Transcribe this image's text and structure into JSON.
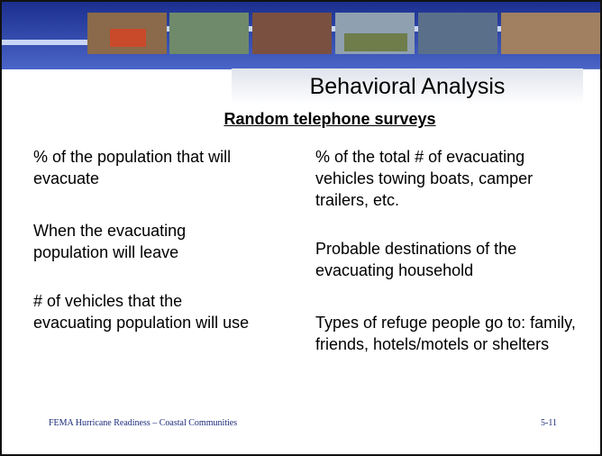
{
  "header": {
    "title": "Behavioral Analysis"
  },
  "subtitle": "Random telephone surveys",
  "left_items": [
    "% of the population that will evacuate",
    "When the evacuating population will leave",
    "# of vehicles that the evacuating population will use"
  ],
  "right_items": [
    "% of the total # of evacuating vehicles towing boats, camper trailers, etc.",
    "Probable destinations of the evacuating household",
    "Types of refuge people go to: family, friends, hotels/motels or shelters"
  ],
  "footer": {
    "text": "FEMA Hurricane Readiness – Coastal Communities",
    "page": "5-11"
  }
}
